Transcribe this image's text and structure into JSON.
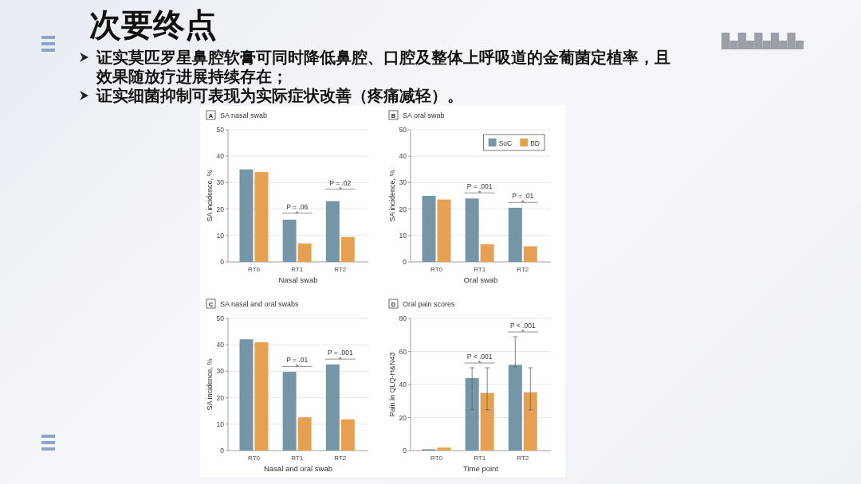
{
  "chart_data": [
    {
      "type": "other",
      "title": "次要终点",
      "annotations": [
        "证实莫匹罗星鼻腔软膏可同时降低鼻腔、口腔及整体上呼吸道的金葡菌定植率，且效果随放疗进展持续存在；",
        "证实细菌抑制可表现为实际症状改善（疼痛减轻）。"
      ]
    },
    {
      "type": "bar",
      "title": "SA nasal swab",
      "annotations": [
        "A",
        {
          "text": "P = .06",
          "x": "RT1",
          "y": 18.4
        },
        {
          "text": "P = .02",
          "x": "RT2",
          "y": 27.5
        }
      ],
      "categories": [
        "RT0",
        "RT1",
        "RT2"
      ],
      "series": [
        {
          "color": "#7496a6",
          "values": [
            35,
            16,
            23
          ]
        },
        {
          "color": "#e6a052",
          "values": [
            34,
            7,
            9.4
          ]
        }
      ],
      "xlabel": "Nasal swab",
      "ylabel": "SA incidence, %",
      "ylim": [
        0,
        50
      ],
      "yticks": [
        0,
        10,
        20,
        30,
        40,
        50
      ],
      "grid": "y"
    },
    {
      "type": "bar",
      "title": "SA oral swab",
      "annotations": [
        "B",
        {
          "text": "P = .001",
          "x": "RT1",
          "y": 26.1
        },
        {
          "text": "P = .01",
          "x": "RT2",
          "y": 22.5
        }
      ],
      "categories": [
        "RT0",
        "RT1",
        "RT2"
      ],
      "series": [
        {
          "name": "SoC",
          "color": "#7496a6",
          "values": [
            25,
            24,
            20.5
          ]
        },
        {
          "name": "BD",
          "color": "#e6a052",
          "values": [
            23.6,
            6.7,
            5.9
          ]
        }
      ],
      "xlabel": "Oral swab",
      "ylabel": "SA incidence, %",
      "ylim": [
        0,
        50
      ],
      "yticks": [
        0,
        10,
        20,
        30,
        40,
        50
      ],
      "grid": "y",
      "legend": "top right"
    },
    {
      "type": "bar",
      "title": "SA nasal and oral swabs",
      "annotations": [
        "C",
        {
          "text": "P = .01",
          "x": "RT1",
          "y": 31.8
        },
        {
          "text": "P = .001",
          "x": "RT2",
          "y": 34.6
        }
      ],
      "categories": [
        "RT0",
        "RT1",
        "RT2"
      ],
      "series": [
        {
          "color": "#7496a6",
          "values": [
            42.1,
            29.8,
            32.6
          ]
        },
        {
          "color": "#e6a052",
          "values": [
            41,
            12.6,
            11.8
          ]
        }
      ],
      "xlabel": "Nasal and oral swab",
      "ylabel": "SA incidence, %",
      "ylim": [
        0,
        50
      ],
      "yticks": [
        0,
        10,
        20,
        30,
        40,
        50
      ],
      "grid": "y"
    },
    {
      "type": "bar",
      "title": "Oral pain scores",
      "annotations": [
        "D",
        {
          "text": "P < .001",
          "x": "RT1",
          "y": 53
        },
        {
          "text": "P < .001",
          "x": "RT2",
          "y": 71.8
        }
      ],
      "categories": [
        "RT0",
        "RT1",
        "RT2"
      ],
      "series": [
        {
          "color": "#7496a6",
          "values": [
            0.8,
            43.9,
            51.9
          ],
          "errors": [
            null,
            [
              24.7,
              50.1
            ],
            [
              50.8,
              68.9
            ]
          ]
        },
        {
          "color": "#e6a052",
          "values": [
            1.8,
            34.9,
            35.3
          ],
          "errors": [
            null,
            [
              24.7,
              50.1
            ],
            [
              24.7,
              50.1
            ]
          ]
        }
      ],
      "xlabel": "Time point",
      "ylabel": "Pain in QLQ-H&N43",
      "ylim": [
        0,
        80
      ],
      "yticks": [
        0,
        20,
        40,
        60,
        80
      ],
      "grid": "y"
    }
  ]
}
